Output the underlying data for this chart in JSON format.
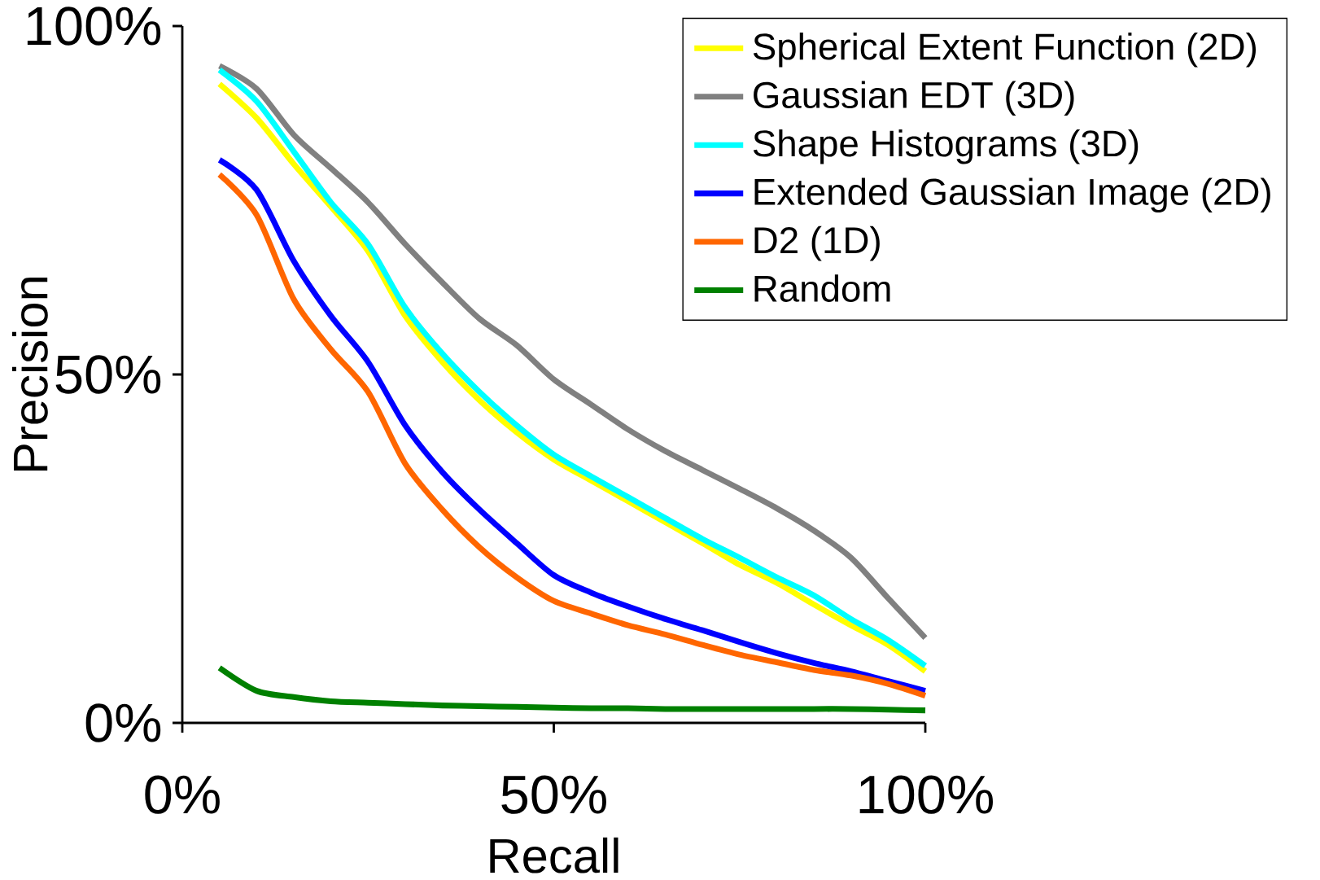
{
  "chart_data": {
    "type": "line",
    "xlabel": "Recall",
    "ylabel": "Precision",
    "x": [
      5,
      10,
      15,
      20,
      25,
      30,
      35,
      40,
      45,
      50,
      55,
      60,
      65,
      70,
      75,
      80,
      85,
      90,
      95,
      100
    ],
    "series": [
      {
        "name": "Spherical Extent Function (2D)",
        "color": "#ffff00",
        "values": [
          91.7,
          86.8,
          80.2,
          74.1,
          67.7,
          58.4,
          51.8,
          46.3,
          41.7,
          37.8,
          34.8,
          31.8,
          28.8,
          25.8,
          22.7,
          20.1,
          17,
          14,
          11.2,
          7.4
        ]
      },
      {
        "name": "Gaussian EDT (3D)",
        "color": "#808080",
        "values": [
          94.3,
          91,
          84.4,
          79.6,
          74.7,
          68.7,
          63.2,
          58,
          54.2,
          49.3,
          45.7,
          42.1,
          39,
          36.3,
          33.6,
          30.8,
          27.6,
          23.7,
          17.9,
          12.2
        ]
      },
      {
        "name": "Shape Histograms (3D)",
        "color": "#00ffff",
        "values": [
          93.7,
          89.2,
          82,
          74.7,
          68.7,
          59.6,
          53,
          47.5,
          42.7,
          38.5,
          35.4,
          32.4,
          29.4,
          26.4,
          23.7,
          20.9,
          18.3,
          14.9,
          11.9,
          8.2
        ]
      },
      {
        "name": "Extended Gaussian Image (2D)",
        "color": "#0000ff",
        "values": [
          80.8,
          76.5,
          66.3,
          58.4,
          51.8,
          42.7,
          36,
          30.6,
          25.8,
          21.2,
          18.7,
          16.7,
          14.9,
          13.3,
          11.6,
          10,
          8.6,
          7.4,
          6,
          4.6
        ]
      },
      {
        "name": "D2 (1D)",
        "color": "#ff6600",
        "values": [
          78.7,
          72.9,
          60.8,
          53.6,
          47.5,
          37.2,
          30.6,
          25.2,
          20.9,
          17.5,
          15.7,
          14,
          12.7,
          11.2,
          9.8,
          8.7,
          7.6,
          6.8,
          5.6,
          3.9
        ]
      },
      {
        "name": "Random",
        "color": "#008000",
        "values": [
          7.9,
          4.6,
          3.7,
          3.1,
          2.9,
          2.7,
          2.5,
          2.4,
          2.3,
          2.2,
          2.1,
          2.1,
          2,
          2,
          2,
          2,
          2,
          2,
          1.9,
          1.8
        ]
      }
    ],
    "xlim": [
      0,
      100
    ],
    "ylim": [
      0,
      100
    ],
    "xticks": [
      {
        "value": 0,
        "label": "0%"
      },
      {
        "value": 50,
        "label": "50%"
      },
      {
        "value": 100,
        "label": "100%"
      }
    ],
    "yticks": [
      {
        "value": 0,
        "label": "0%"
      },
      {
        "value": 50,
        "label": "50%"
      },
      {
        "value": 100,
        "label": "100%"
      }
    ],
    "grid": false,
    "legend": "top right",
    "marker": "none",
    "line_style": "solid"
  }
}
